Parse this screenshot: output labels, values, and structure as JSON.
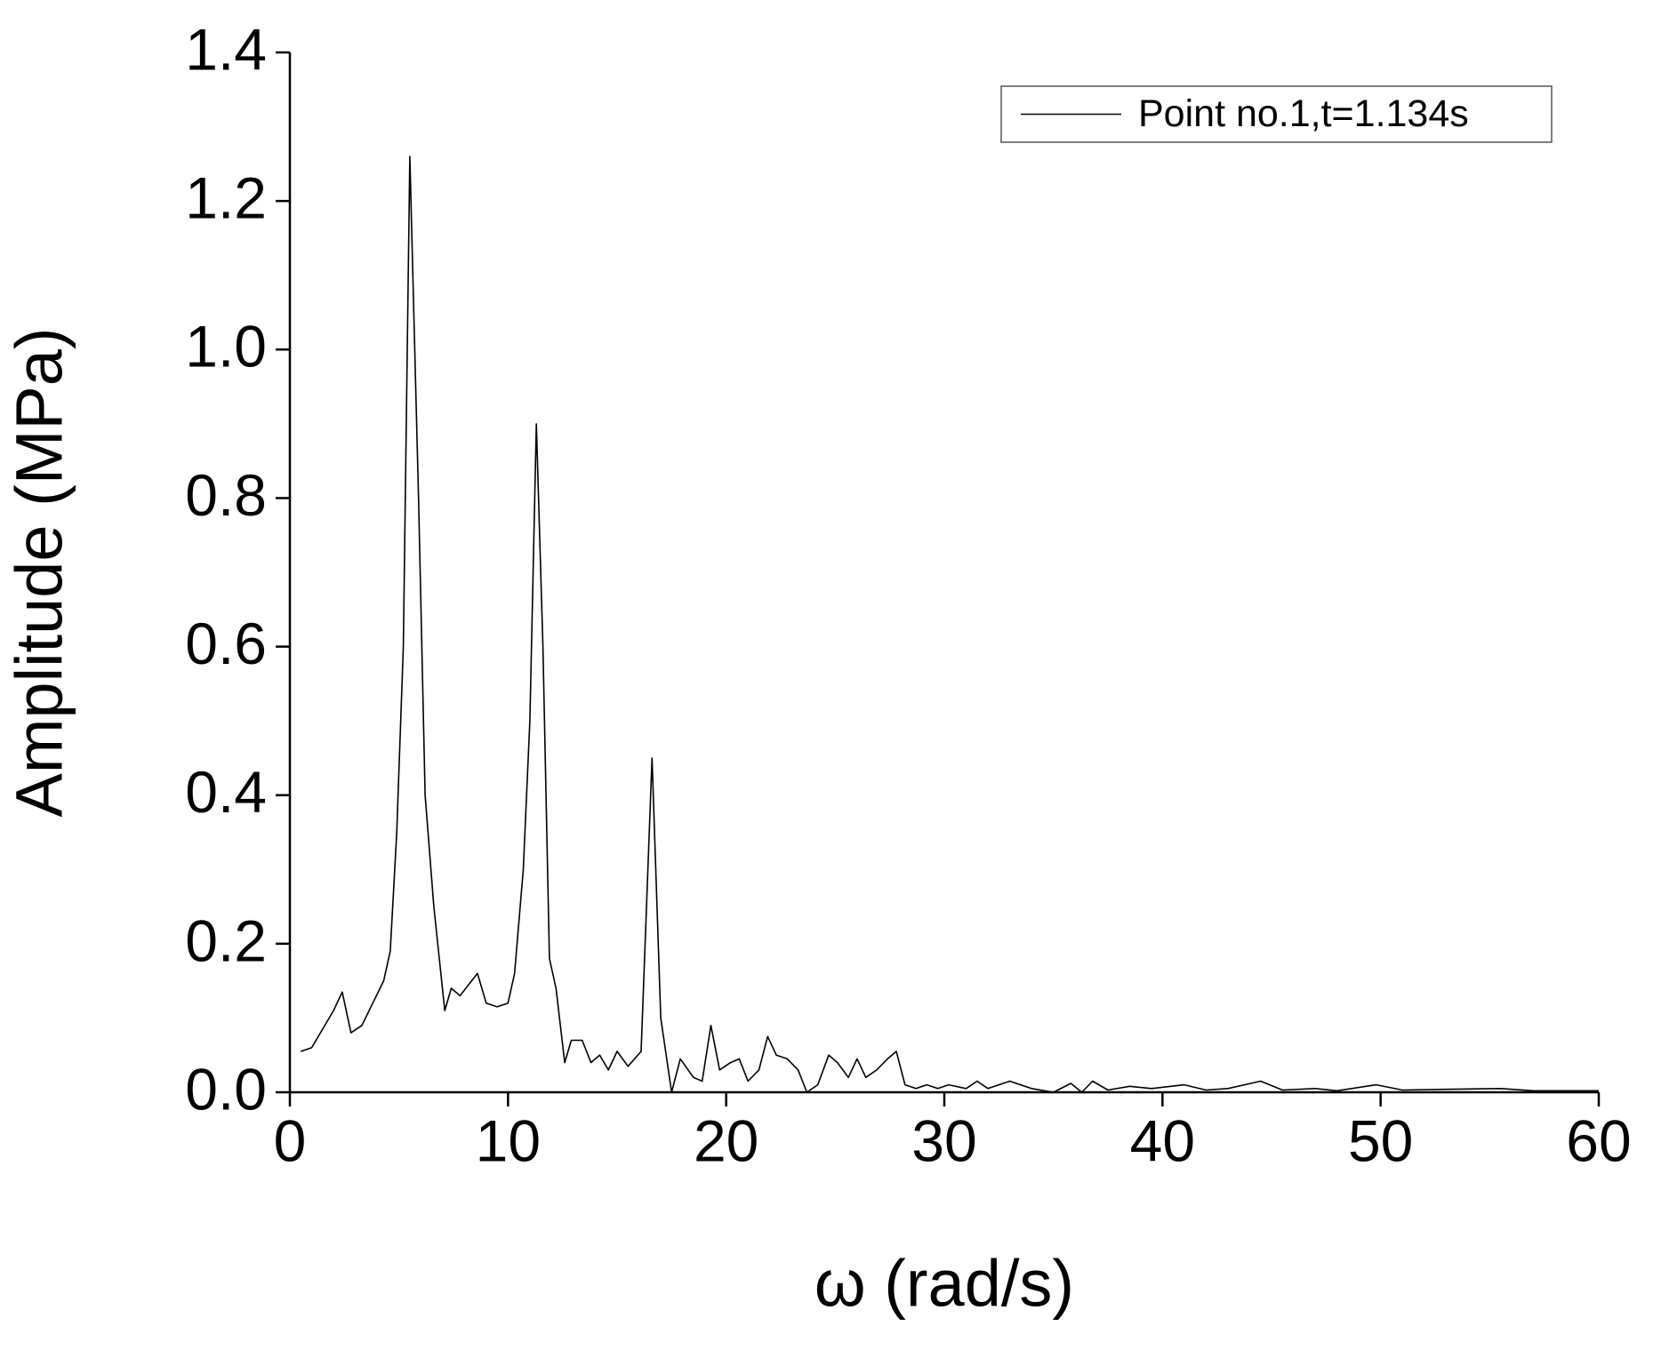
{
  "chart_data": {
    "type": "line",
    "xlabel": "ω (rad/s)",
    "ylabel": "Amplitude (MPa)",
    "xlim": [
      0,
      60
    ],
    "ylim": [
      0,
      1.4
    ],
    "xticks": [
      0,
      10,
      20,
      30,
      40,
      50,
      60
    ],
    "yticks": [
      {
        "value": 0,
        "label": "0.0"
      },
      0.2,
      0.4,
      0.6,
      0.8,
      {
        "value": 1,
        "label": "1.0"
      },
      1.2,
      1.4
    ],
    "legend": "top-right",
    "x": [
      0.5,
      1,
      1.5,
      2,
      2.4,
      2.8,
      3.3,
      3.8,
      4.3,
      4.6,
      4.9,
      5.2,
      5.5,
      5.9,
      6.2,
      6.6,
      7.1,
      7.4,
      7.8,
      8.2,
      8.6,
      9,
      9.5,
      10,
      10.3,
      10.7,
      11,
      11.3,
      11.6,
      11.9,
      12.2,
      12.6,
      12.9,
      13.4,
      13.8,
      14.2,
      14.6,
      15,
      15.5,
      16.1,
      16.6,
      17,
      17.5,
      17.9,
      18.5,
      18.9,
      19.3,
      19.7,
      20.2,
      20.6,
      21,
      21.5,
      21.9,
      22.3,
      22.8,
      23.3,
      23.7,
      24.2,
      24.7,
      25.1,
      25.6,
      26,
      26.4,
      26.9,
      27.4,
      27.8,
      28.2,
      28.7,
      29.2,
      29.7,
      30.2,
      31,
      31.5,
      32,
      33,
      34,
      35,
      35.8,
      36.3,
      36.8,
      37.5,
      38.5,
      39.5,
      41,
      42,
      43,
      44.5,
      45.5,
      47,
      48,
      49.8,
      51,
      53,
      55.5,
      57,
      60
    ],
    "series": [
      {
        "name": "Point no.1,t=1.134s",
        "color": "#000000",
        "values": [
          0.055,
          0.06,
          0.085,
          0.11,
          0.135,
          0.08,
          0.09,
          0.12,
          0.15,
          0.19,
          0.35,
          0.6,
          1.26,
          0.8,
          0.4,
          0.25,
          0.11,
          0.14,
          0.13,
          0.145,
          0.16,
          0.12,
          0.115,
          0.12,
          0.16,
          0.3,
          0.5,
          0.9,
          0.6,
          0.18,
          0.14,
          0.04,
          0.07,
          0.07,
          0.04,
          0.05,
          0.03,
          0.055,
          0.035,
          0.055,
          0.45,
          0.1,
          0.0,
          0.045,
          0.02,
          0.015,
          0.09,
          0.03,
          0.04,
          0.045,
          0.015,
          0.03,
          0.075,
          0.05,
          0.045,
          0.03,
          0.0,
          0.01,
          0.05,
          0.04,
          0.02,
          0.045,
          0.02,
          0.03,
          0.045,
          0.055,
          0.01,
          0.005,
          0.01,
          0.005,
          0.01,
          0.005,
          0.015,
          0.005,
          0.015,
          0.005,
          0.0,
          0.012,
          0.0,
          0.015,
          0.003,
          0.008,
          0.005,
          0.01,
          0.003,
          0.005,
          0.015,
          0.003,
          0.005,
          0.002,
          0.01,
          0.003,
          0.004,
          0.005,
          0.002,
          0.002
        ]
      }
    ]
  }
}
